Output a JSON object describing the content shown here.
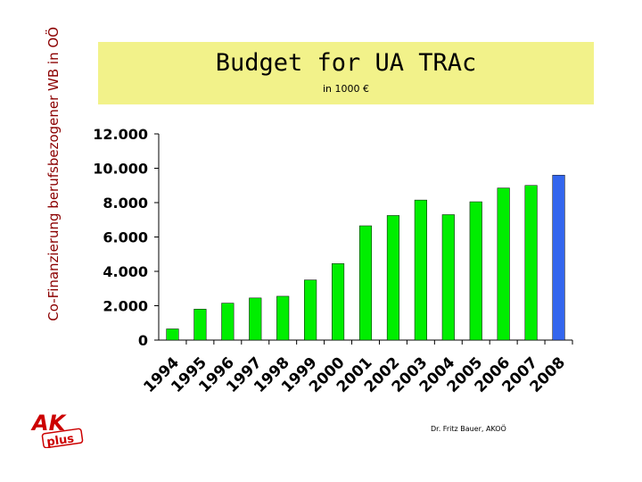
{
  "side_title": "Co-Finanzierung berufsbezogener WB in OÖ",
  "title": "Budget for UA TRAc",
  "subtitle": "in 1000 €",
  "footer_credit": "Dr. Fritz Bauer, AKOÖ",
  "logo": {
    "text_top": "AK",
    "text_bottom": "plus",
    "icon": "ak-plus-logo"
  },
  "colors": {
    "bar": "#00ee00",
    "bar_highlight": "#3366ee",
    "title_bg": "#f2f28a",
    "side_title": "#8b0000"
  },
  "chart_data": {
    "type": "bar",
    "categories": [
      "1994",
      "1995",
      "1996",
      "1997",
      "1998",
      "1999",
      "2000",
      "2001",
      "2002",
      "2003",
      "2004",
      "2005",
      "2006",
      "2007",
      "2008"
    ],
    "values": [
      650,
      1800,
      2150,
      2450,
      2550,
      3500,
      4450,
      6650,
      7250,
      8150,
      7300,
      8050,
      8850,
      9000,
      9600
    ],
    "highlight_index": 14,
    "ylim": [
      0,
      12000
    ],
    "yticks": [
      "0",
      "2.000",
      "4.000",
      "6.000",
      "8.000",
      "10.000",
      "12.000"
    ],
    "title": "",
    "xlabel": "",
    "ylabel": "",
    "grid": false
  }
}
